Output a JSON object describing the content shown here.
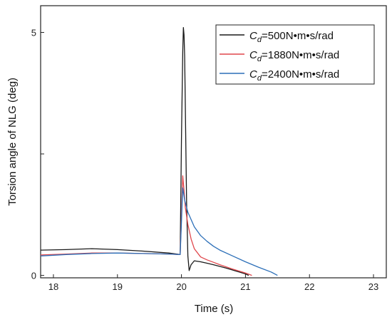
{
  "chart_data": {
    "type": "line",
    "xlabel": "Time (s)",
    "ylabel": "Torsion angle of NLG (deg)",
    "xlim": [
      17.8,
      23.2
    ],
    "ylim": [
      -0.05,
      5.55
    ],
    "xticks": [
      18,
      19,
      20,
      21,
      22,
      23
    ],
    "yticks_labeled": [
      0,
      5
    ],
    "yticks_unlabeled": [
      2.5
    ],
    "legend_position": "top-right",
    "grid": false,
    "series": [
      {
        "name": "Cd=500N•m•s/rad",
        "name_italic": "C",
        "name_sub": "d",
        "name_rest": "=500N•m•s/rad",
        "color": "#1a1a1a",
        "x": [
          17.8,
          18.2,
          18.6,
          19.0,
          19.4,
          19.8,
          19.98,
          20.0,
          20.02,
          20.03,
          20.04,
          20.05,
          20.06,
          20.08,
          20.1,
          20.12,
          20.15,
          20.2,
          20.3,
          20.4,
          20.5,
          20.7,
          20.9,
          21.0,
          21.05
        ],
        "y": [
          0.52,
          0.53,
          0.55,
          0.53,
          0.5,
          0.46,
          0.43,
          2.8,
          4.6,
          5.1,
          4.95,
          4.5,
          3.5,
          1.5,
          0.4,
          0.1,
          0.22,
          0.3,
          0.28,
          0.25,
          0.22,
          0.15,
          0.07,
          0.03,
          0.0
        ]
      },
      {
        "name": "Cd=1880N•m•s/rad",
        "name_italic": "C",
        "name_sub": "d",
        "name_rest": "=1880N•m•s/rad",
        "color": "#e0474c",
        "x": [
          17.8,
          18.2,
          18.6,
          19.0,
          19.4,
          19.8,
          19.98,
          20.0,
          20.02,
          20.04,
          20.06,
          20.1,
          20.15,
          20.2,
          20.3,
          20.4,
          20.5,
          20.6,
          20.8,
          21.0,
          21.1
        ],
        "y": [
          0.42,
          0.44,
          0.46,
          0.46,
          0.45,
          0.44,
          0.43,
          1.2,
          2.05,
          1.75,
          1.4,
          1.05,
          0.75,
          0.55,
          0.38,
          0.32,
          0.27,
          0.22,
          0.13,
          0.05,
          0.0
        ]
      },
      {
        "name": "Cd=2400N•m•s/rad",
        "name_italic": "C",
        "name_sub": "d",
        "name_rest": "=2400N•m•s/rad",
        "color": "#2c6fb8",
        "x": [
          17.8,
          18.2,
          18.6,
          19.0,
          19.4,
          19.8,
          19.98,
          20.0,
          20.02,
          20.05,
          20.1,
          20.2,
          20.3,
          20.4,
          20.5,
          20.6,
          20.8,
          21.0,
          21.2,
          21.4,
          21.5
        ],
        "y": [
          0.4,
          0.43,
          0.45,
          0.46,
          0.45,
          0.44,
          0.43,
          1.1,
          1.8,
          1.55,
          1.3,
          1.0,
          0.82,
          0.7,
          0.6,
          0.52,
          0.4,
          0.28,
          0.17,
          0.07,
          0.0
        ]
      }
    ]
  }
}
